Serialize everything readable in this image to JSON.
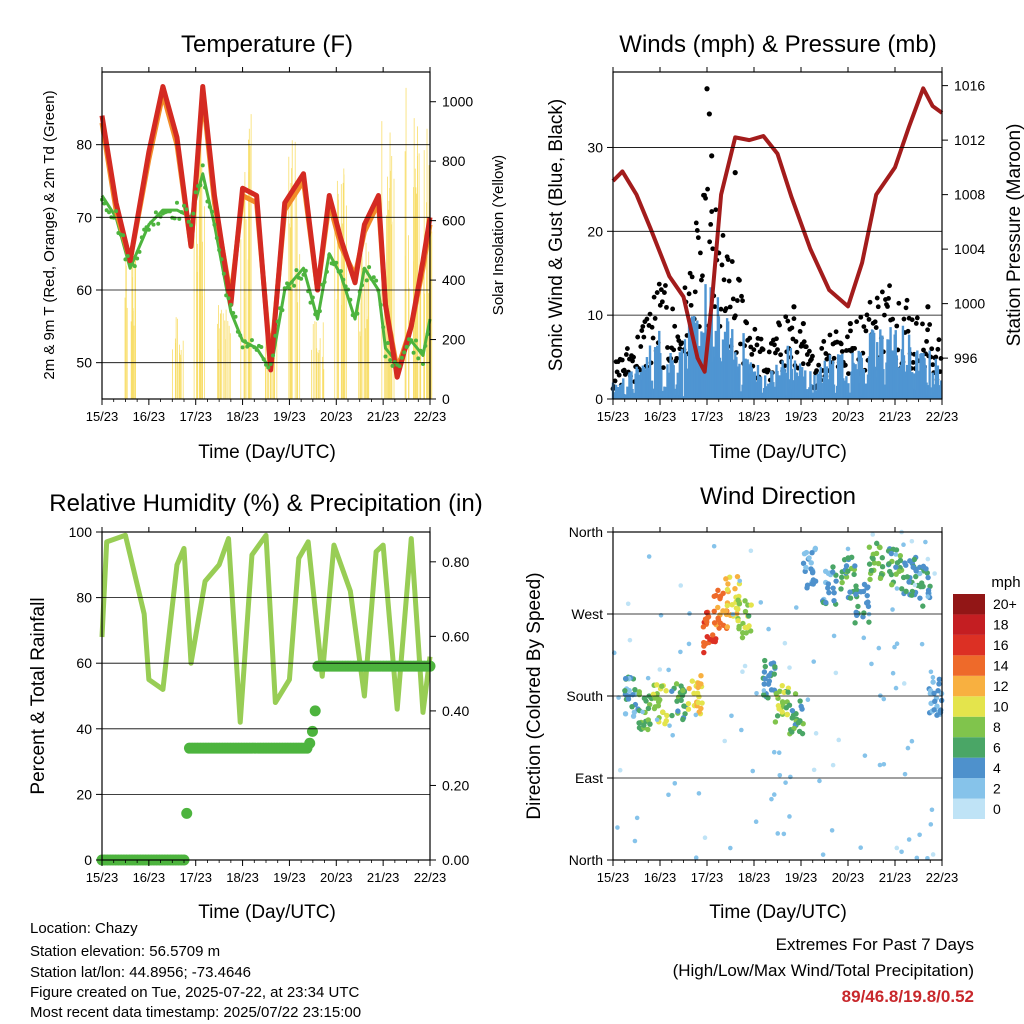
{
  "time_ticks": [
    "15/23",
    "16/23",
    "17/23",
    "18/23",
    "19/23",
    "20/23",
    "21/23",
    "22/23"
  ],
  "chart_data": [
    {
      "type": "line",
      "title": "Temperature (F)",
      "xlabel": "Time (Day/UTC)",
      "ylabel": "2m & 9m T (Red, Orange) & 2m Td (Green)",
      "ylabel_right": "Solar Insolation (Yellow)",
      "ylim": [
        45,
        90
      ],
      "ylim_right": [
        0,
        1100
      ],
      "yticks": [
        50,
        60,
        70,
        80
      ],
      "yticks_right": [
        0,
        200,
        400,
        600,
        800,
        1000
      ],
      "grid": "horizontal",
      "x_days": [
        0,
        0.3,
        0.6,
        1.0,
        1.3,
        1.6,
        1.9,
        2.15,
        2.4,
        2.75,
        3.0,
        3.3,
        3.6,
        3.9,
        4.3,
        4.6,
        4.85,
        5.1,
        5.4,
        5.6,
        5.9,
        6.05,
        6.3,
        6.6,
        6.85,
        7.0
      ],
      "series": [
        {
          "name": "2m T",
          "color": "#d42a22",
          "values": [
            84,
            72,
            64,
            79,
            88,
            81,
            66,
            88,
            73,
            58,
            74,
            73,
            49,
            72,
            76,
            60,
            73,
            67,
            61,
            69,
            73,
            58,
            48,
            55,
            64,
            70
          ]
        },
        {
          "name": "9m T",
          "color": "#f28c28",
          "values": [
            83,
            71,
            64,
            78,
            87,
            80,
            66,
            87,
            72,
            59,
            73,
            72,
            50,
            71,
            75,
            60,
            72,
            66,
            62,
            68,
            72,
            58,
            49,
            55,
            63,
            69
          ]
        },
        {
          "name": "2m Td",
          "color": "#4db43e",
          "values": [
            73,
            70,
            63,
            69,
            71,
            71,
            70,
            76,
            69,
            57,
            53,
            52,
            49,
            60,
            63,
            56,
            65,
            62,
            56,
            63,
            60,
            52,
            50,
            53,
            51,
            56
          ]
        },
        {
          "name": "Solar Insolation",
          "color": "#f8de6a",
          "axis": "right",
          "spike_days": [
            0.1,
            0.6,
            1.1,
            1.6,
            2.1,
            2.6,
            3.1,
            3.6,
            4.1,
            4.6,
            5.1,
            5.6,
            6.1,
            6.6,
            6.9
          ],
          "spike_values": [
            0,
            520,
            0,
            300,
            980,
            330,
            960,
            250,
            880,
            270,
            780,
            560,
            940,
            1060,
            920
          ]
        }
      ]
    },
    {
      "type": "scatter",
      "title": "Winds (mph) & Pressure (mb)",
      "xlabel": "Time (Day/UTC)",
      "ylabel": "Sonic Wind & Gust (Blue, Black)",
      "ylabel_right": "Station Pressure (Maroon)",
      "ylim": [
        0,
        39
      ],
      "ylim_right": [
        993,
        1017
      ],
      "yticks": [
        0,
        10,
        20,
        30
      ],
      "yticks_right": [
        996,
        1000,
        1004,
        1008,
        1012,
        1016
      ],
      "grid": "horizontal",
      "wind_envelope_days": [
        0,
        0.5,
        1.0,
        1.4,
        1.8,
        2.0,
        2.2,
        2.5,
        2.8,
        3.0,
        3.3,
        3.7,
        4.0,
        4.3,
        4.7,
        5.0,
        5.4,
        5.8,
        6.2,
        6.5,
        6.8,
        7.0
      ],
      "gust_peak": [
        4,
        8,
        15,
        10,
        22,
        26,
        23,
        17,
        14,
        9,
        6,
        12,
        8,
        5,
        11,
        8,
        12,
        15,
        14,
        10,
        9,
        7
      ],
      "wind_peak": [
        2,
        4,
        9,
        6,
        12,
        15,
        13,
        9,
        8,
        5,
        3,
        7,
        5,
        3,
        7,
        5,
        8,
        10,
        9,
        6,
        6,
        4
      ],
      "outlier_gusts_days": [
        2.0,
        2.05,
        2.1,
        2.6,
        3.85,
        4.05,
        5.05,
        6.7
      ],
      "outlier_gusts_values": [
        37,
        34,
        29,
        27,
        11,
        9,
        9,
        11
      ],
      "pressure_days": [
        0,
        0.2,
        0.5,
        0.8,
        1.2,
        1.5,
        1.8,
        1.95,
        2.1,
        2.3,
        2.6,
        2.9,
        3.2,
        3.5,
        3.8,
        4.2,
        4.6,
        5.0,
        5.3,
        5.6,
        6.0,
        6.3,
        6.6,
        6.8,
        7.0
      ],
      "pressure_values": [
        1009,
        1009.7,
        1008,
        1005.5,
        1002,
        1000.5,
        996,
        995,
        1000,
        1008,
        1012.2,
        1012,
        1012.3,
        1011,
        1007.8,
        1004,
        1001,
        999.8,
        1003,
        1008,
        1010,
        1013,
        1015.8,
        1014.5,
        1014
      ]
    },
    {
      "type": "line",
      "title": "Relative Humidity (%) & Precipitation (in)",
      "xlabel": "Time (Day/UTC)",
      "ylabel": "Percent & Total Rainfall",
      "ylim": [
        0,
        100
      ],
      "ylim_right": [
        0,
        0.88
      ],
      "yticks": [
        0,
        20,
        40,
        60,
        80,
        100
      ],
      "yticks_right": [
        "0.00",
        "0.20",
        "0.40",
        "0.60",
        "0.80"
      ],
      "grid": "horizontal",
      "x_days": [
        0,
        0.1,
        0.5,
        0.9,
        1.0,
        1.3,
        1.6,
        1.75,
        1.9,
        2.2,
        2.5,
        2.7,
        2.95,
        3.2,
        3.5,
        3.7,
        4.0,
        4.2,
        4.4,
        4.7,
        4.95,
        5.3,
        5.6,
        5.85,
        6.0,
        6.3,
        6.6,
        6.85,
        7.0
      ],
      "series": [
        {
          "name": "Relative Humidity",
          "color": "#98cd55",
          "values": [
            68,
            97,
            99,
            75,
            55,
            52,
            90,
            95,
            60,
            85,
            90,
            98,
            42,
            93,
            99,
            48,
            55,
            92,
            97,
            56,
            96,
            82,
            50,
            94,
            96,
            46,
            98,
            45,
            62
          ]
        }
      ],
      "precip_days": [
        0,
        1.8,
        1.81,
        1.82,
        2.1,
        4.4,
        4.45,
        4.5,
        4.55,
        4.6,
        7.0
      ],
      "precip_values": [
        0,
        0,
        0.15,
        0.3,
        0.3,
        0.3,
        0.32,
        0.35,
        0.4,
        0.52,
        0.52
      ]
    },
    {
      "type": "scatter",
      "title": "Wind Direction",
      "xlabel": "Time (Day/UTC)",
      "ylabel": "Direction (Colored By Speed)",
      "ylim": [
        0,
        360
      ],
      "yticks": [
        "North",
        "East",
        "South",
        "West",
        "North"
      ],
      "grid": "horizontal",
      "colorbar_title": "mph",
      "colorbar_levels": [
        "0",
        "2",
        "4",
        "6",
        "8",
        "10",
        "12",
        "14",
        "16",
        "18",
        "20+"
      ],
      "colorbar_colors": [
        "#bfe3f6",
        "#86c3ea",
        "#4e91cc",
        "#4aa666",
        "#80c44c",
        "#e4e44c",
        "#f8b040",
        "#ee6a2a",
        "#dc3024",
        "#c41e22",
        "#921616"
      ],
      "cluster_days": [
        0.4,
        0.7,
        1.0,
        1.4,
        1.75,
        2.05,
        2.3,
        2.55,
        2.8,
        3.3,
        3.6,
        3.9,
        4.2,
        4.6,
        5.0,
        5.3,
        5.6,
        6.0,
        6.3,
        6.6,
        6.85
      ],
      "cluster_dirs": [
        180,
        165,
        170,
        175,
        180,
        250,
        275,
        290,
        265,
        200,
        170,
        160,
        320,
        300,
        310,
        280,
        330,
        320,
        310,
        300,
        180
      ],
      "cluster_speeds": [
        4,
        7,
        9,
        6,
        11,
        15,
        13,
        11,
        8,
        5,
        8,
        6,
        3,
        4,
        6,
        5,
        7,
        6,
        5,
        4,
        3
      ]
    }
  ],
  "info": {
    "location": "Location: Chazy",
    "elevation": "Station elevation: 56.5709 m",
    "latlon": "Station lat/lon: 44.8956; -73.4646",
    "created": "Figure created on Tue, 2025-07-22, at 23:34 UTC",
    "recent": "Most recent data timestamp: 2025/07/22 23:15:00"
  },
  "extremes": {
    "title": "Extremes For Past 7 Days",
    "subtitle": "(High/Low/Max Wind/Total Precipitation)",
    "values": "89/46.8/19.8/0.52",
    "values_color": "#c8282c"
  }
}
